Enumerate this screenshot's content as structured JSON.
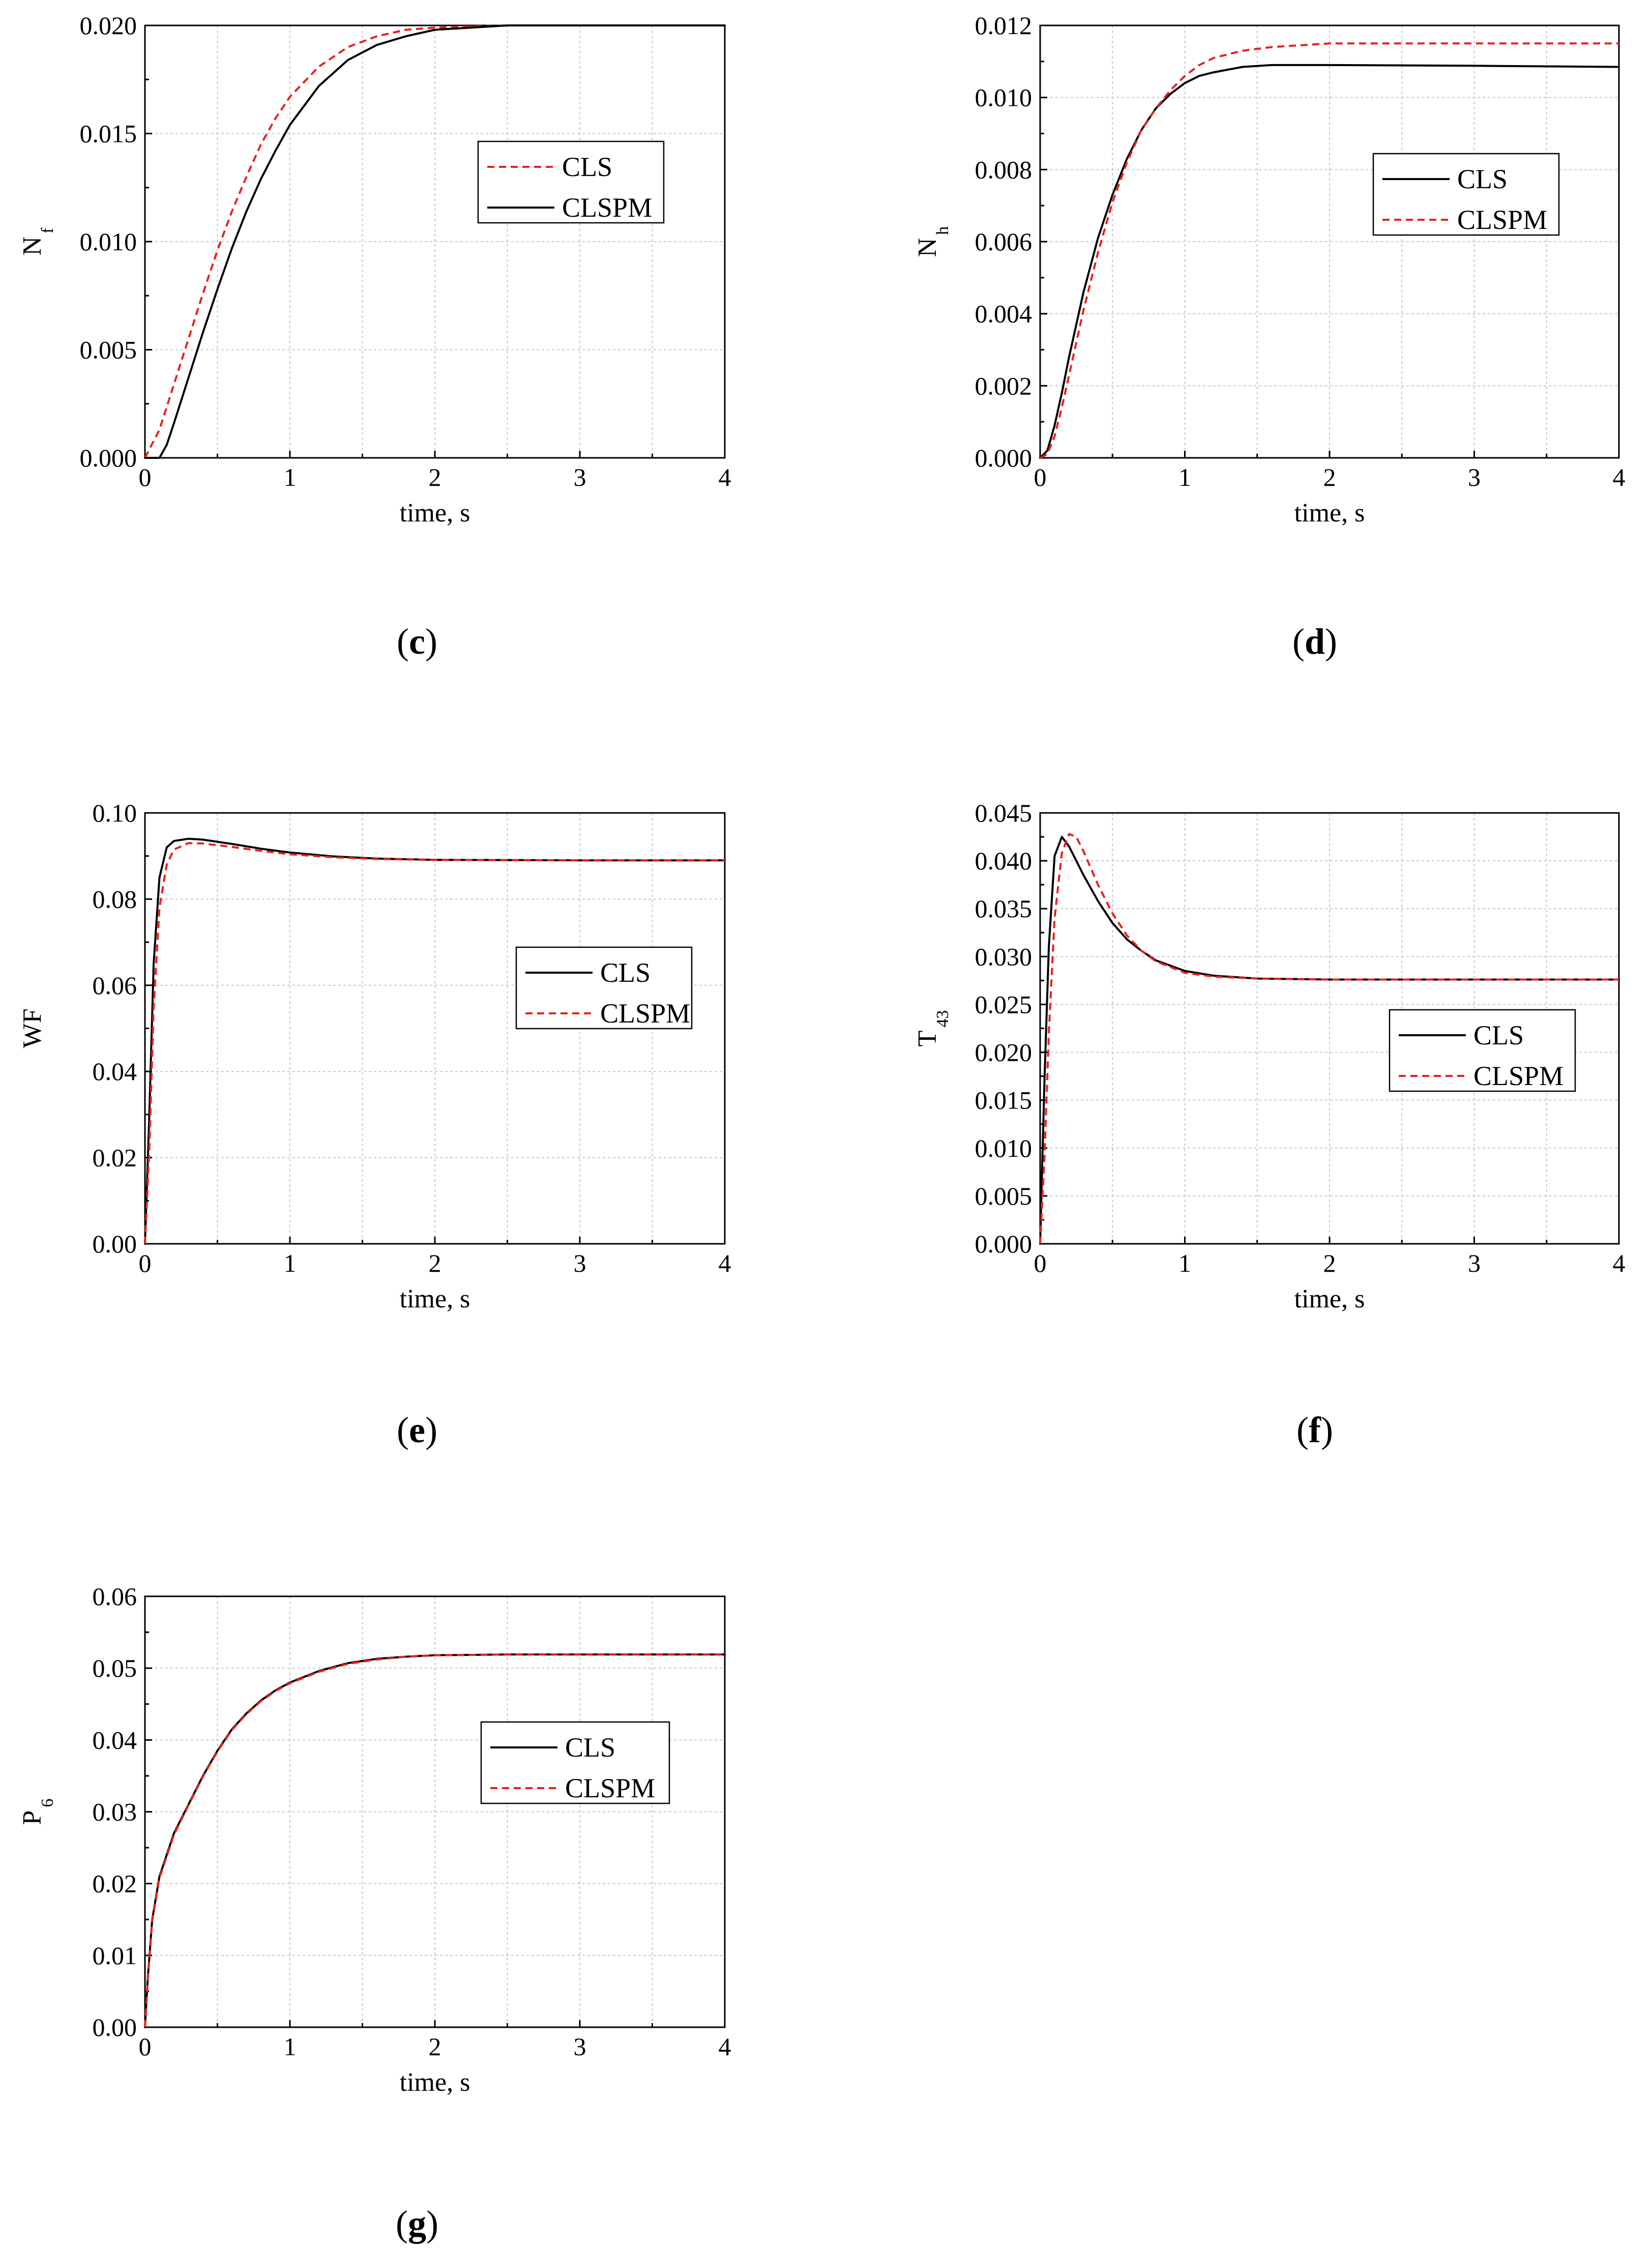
{
  "chart_data": [
    {
      "id": "c",
      "caption_letter": "c",
      "type": "line",
      "ylabel": "N",
      "ylabel_sub": "f",
      "xlabel": "time, s",
      "xlim": [
        0,
        4
      ],
      "ylim": [
        0,
        0.02
      ],
      "xticks": [
        "0",
        "1",
        "2",
        "3",
        "4"
      ],
      "yticks": [
        "0.000",
        "0.005",
        "0.010",
        "0.015",
        "0.020"
      ],
      "grid": true,
      "legend": [
        {
          "label": "CLS",
          "color": "#e8201a",
          "dash": true
        },
        {
          "label": "CLSPM",
          "color": "#000000",
          "dash": false
        }
      ],
      "series": [
        {
          "name": "CLS",
          "color": "#e8201a",
          "dash": true,
          "x": [
            0,
            0.1,
            0.2,
            0.3,
            0.4,
            0.5,
            0.6,
            0.7,
            0.8,
            0.9,
            1.0,
            1.2,
            1.4,
            1.6,
            1.8,
            2.0,
            2.5,
            3.0,
            3.5,
            4.0
          ],
          "y": [
            0,
            0.0013,
            0.0034,
            0.0055,
            0.0076,
            0.0096,
            0.0114,
            0.013,
            0.0145,
            0.0157,
            0.0167,
            0.0181,
            0.019,
            0.0195,
            0.0198,
            0.0199,
            0.02,
            0.02,
            0.02,
            0.02
          ]
        },
        {
          "name": "CLSPM",
          "color": "#000000",
          "dash": false,
          "x": [
            0,
            0.1,
            0.15,
            0.2,
            0.3,
            0.4,
            0.5,
            0.6,
            0.7,
            0.8,
            0.9,
            1.0,
            1.2,
            1.4,
            1.6,
            1.8,
            2.0,
            2.5,
            3.0,
            3.5,
            4.0
          ],
          "y": [
            0,
            0,
            0.0006,
            0.0016,
            0.0037,
            0.0058,
            0.0078,
            0.0097,
            0.0114,
            0.0129,
            0.0142,
            0.0154,
            0.0172,
            0.0184,
            0.0191,
            0.0195,
            0.0198,
            0.02,
            0.02,
            0.02,
            0.02
          ]
        }
      ]
    },
    {
      "id": "d",
      "caption_letter": "d",
      "type": "line",
      "ylabel": "N",
      "ylabel_sub": "h",
      "xlabel": "time, s",
      "xlim": [
        0,
        4
      ],
      "ylim": [
        0,
        0.012
      ],
      "xticks": [
        "0",
        "1",
        "2",
        "3",
        "4"
      ],
      "yticks": [
        "0.000",
        "0.002",
        "0.004",
        "0.006",
        "0.008",
        "0.010",
        "0.012"
      ],
      "grid": true,
      "legend": [
        {
          "label": "CLS",
          "color": "#000000",
          "dash": false
        },
        {
          "label": "CLSPM",
          "color": "#e8201a",
          "dash": true
        }
      ],
      "series": [
        {
          "name": "CLS",
          "color": "#000000",
          "dash": false,
          "x": [
            0,
            0.05,
            0.1,
            0.15,
            0.2,
            0.3,
            0.4,
            0.5,
            0.6,
            0.7,
            0.8,
            0.9,
            1.0,
            1.1,
            1.2,
            1.4,
            1.6,
            2.0,
            3.0,
            4.0
          ],
          "y": [
            0,
            0.0002,
            0.0009,
            0.0018,
            0.0028,
            0.0046,
            0.0061,
            0.0073,
            0.0083,
            0.0091,
            0.0097,
            0.0101,
            0.0104,
            0.0106,
            0.0107,
            0.01085,
            0.0109,
            0.0109,
            0.01088,
            0.01085
          ]
        },
        {
          "name": "CLSPM",
          "color": "#e8201a",
          "dash": true,
          "x": [
            0,
            0.05,
            0.1,
            0.15,
            0.2,
            0.3,
            0.4,
            0.5,
            0.6,
            0.7,
            0.8,
            0.9,
            1.0,
            1.1,
            1.2,
            1.4,
            1.6,
            1.8,
            2.0,
            2.5,
            3.0,
            4.0
          ],
          "y": [
            0,
            0.0001,
            0.0006,
            0.0014,
            0.0023,
            0.0041,
            0.0057,
            0.0071,
            0.0082,
            0.0091,
            0.0097,
            0.0102,
            0.0106,
            0.0109,
            0.0111,
            0.0113,
            0.0114,
            0.01145,
            0.0115,
            0.0115,
            0.0115,
            0.0115
          ]
        }
      ]
    },
    {
      "id": "e",
      "caption_letter": "e",
      "type": "line",
      "ylabel": "WF",
      "ylabel_sub": "",
      "xlabel": "time, s",
      "xlim": [
        0,
        4
      ],
      "ylim": [
        0,
        0.1
      ],
      "xticks": [
        "0",
        "1",
        "2",
        "3",
        "4"
      ],
      "yticks": [
        "0.00",
        "0.02",
        "0.04",
        "0.06",
        "0.08",
        "0.10"
      ],
      "grid": true,
      "legend": [
        {
          "label": "CLS",
          "color": "#000000",
          "dash": false
        },
        {
          "label": "CLSPM",
          "color": "#e8201a",
          "dash": true
        }
      ],
      "series": [
        {
          "name": "CLS",
          "color": "#000000",
          "dash": false,
          "x": [
            0,
            0.03,
            0.06,
            0.1,
            0.15,
            0.2,
            0.3,
            0.4,
            0.6,
            0.8,
            1.0,
            1.3,
            1.6,
            2.0,
            3.0,
            4.0
          ],
          "y": [
            0,
            0.03,
            0.065,
            0.085,
            0.092,
            0.0935,
            0.094,
            0.0938,
            0.0928,
            0.0917,
            0.0908,
            0.0899,
            0.0894,
            0.0891,
            0.089,
            0.089
          ]
        },
        {
          "name": "CLSPM",
          "color": "#e8201a",
          "dash": true,
          "x": [
            0,
            0.03,
            0.06,
            0.1,
            0.15,
            0.2,
            0.3,
            0.4,
            0.6,
            0.8,
            1.0,
            1.3,
            1.6,
            2.0,
            3.0,
            4.0
          ],
          "y": [
            0,
            0.022,
            0.055,
            0.078,
            0.088,
            0.0915,
            0.093,
            0.0929,
            0.0921,
            0.0912,
            0.0904,
            0.0897,
            0.0893,
            0.0891,
            0.089,
            0.089
          ]
        }
      ]
    },
    {
      "id": "f",
      "caption_letter": "f",
      "type": "line",
      "ylabel": "T",
      "ylabel_sub": "43",
      "xlabel": "time, s",
      "xlim": [
        0,
        4
      ],
      "ylim": [
        0,
        0.045
      ],
      "xticks": [
        "0",
        "1",
        "2",
        "3",
        "4"
      ],
      "yticks": [
        "0.000",
        "0.005",
        "0.010",
        "0.015",
        "0.020",
        "0.025",
        "0.030",
        "0.035",
        "0.040",
        "0.045"
      ],
      "grid": true,
      "legend": [
        {
          "label": "CLS",
          "color": "#000000",
          "dash": false
        },
        {
          "label": "CLSPM",
          "color": "#e8201a",
          "dash": true
        }
      ],
      "series": [
        {
          "name": "CLS",
          "color": "#000000",
          "dash": false,
          "x": [
            0,
            0.03,
            0.06,
            0.1,
            0.15,
            0.2,
            0.3,
            0.4,
            0.5,
            0.6,
            0.7,
            0.8,
            1.0,
            1.2,
            1.5,
            2.0,
            3.0,
            4.0
          ],
          "y": [
            0,
            0.017,
            0.031,
            0.0405,
            0.0425,
            0.0415,
            0.0385,
            0.0358,
            0.0335,
            0.0318,
            0.0306,
            0.0296,
            0.0285,
            0.028,
            0.0277,
            0.0276,
            0.0276,
            0.0276
          ]
        },
        {
          "name": "CLSPM",
          "color": "#e8201a",
          "dash": true,
          "x": [
            0,
            0.03,
            0.06,
            0.1,
            0.15,
            0.2,
            0.25,
            0.3,
            0.4,
            0.5,
            0.6,
            0.7,
            0.8,
            1.0,
            1.2,
            1.5,
            2.0,
            3.0,
            4.0
          ],
          "y": [
            0,
            0.009,
            0.022,
            0.034,
            0.0408,
            0.0428,
            0.0425,
            0.041,
            0.0375,
            0.0345,
            0.0322,
            0.0306,
            0.0295,
            0.0283,
            0.0279,
            0.0277,
            0.0276,
            0.0276,
            0.0276
          ]
        }
      ]
    },
    {
      "id": "g",
      "caption_letter": "g",
      "type": "line",
      "ylabel": "P",
      "ylabel_sub": "6",
      "xlabel": "time, s",
      "xlim": [
        0,
        4
      ],
      "ylim": [
        0,
        0.06
      ],
      "xticks": [
        "0",
        "1",
        "2",
        "3",
        "4"
      ],
      "yticks": [
        "0.00",
        "0.01",
        "0.02",
        "0.03",
        "0.04",
        "0.05",
        "0.06"
      ],
      "grid": true,
      "legend": [
        {
          "label": "CLS",
          "color": "#000000",
          "dash": false
        },
        {
          "label": "CLSPM",
          "color": "#e8201a",
          "dash": true
        }
      ],
      "series": [
        {
          "name": "CLS",
          "color": "#000000",
          "dash": false,
          "x": [
            0,
            0.02,
            0.05,
            0.1,
            0.15,
            0.2,
            0.3,
            0.4,
            0.5,
            0.6,
            0.7,
            0.8,
            0.9,
            1.0,
            1.2,
            1.4,
            1.6,
            1.8,
            2.0,
            2.5,
            3.0,
            4.0
          ],
          "y": [
            0,
            0.007,
            0.015,
            0.021,
            0.024,
            0.027,
            0.031,
            0.035,
            0.0385,
            0.0415,
            0.0437,
            0.0455,
            0.0469,
            0.048,
            0.0496,
            0.0507,
            0.0513,
            0.0516,
            0.0518,
            0.0519,
            0.0519,
            0.0519
          ]
        },
        {
          "name": "CLSPM",
          "color": "#e8201a",
          "dash": true,
          "x": [
            0,
            0.02,
            0.05,
            0.1,
            0.15,
            0.2,
            0.3,
            0.4,
            0.5,
            0.6,
            0.7,
            0.8,
            0.9,
            1.0,
            1.2,
            1.4,
            1.6,
            1.8,
            2.0,
            2.5,
            3.0,
            4.0
          ],
          "y": [
            0,
            0.0068,
            0.0148,
            0.0208,
            0.0238,
            0.0268,
            0.0309,
            0.0349,
            0.0384,
            0.0414,
            0.0436,
            0.0454,
            0.0468,
            0.0479,
            0.0495,
            0.0506,
            0.0512,
            0.0516,
            0.0518,
            0.0519,
            0.0519,
            0.0519
          ]
        }
      ]
    }
  ]
}
